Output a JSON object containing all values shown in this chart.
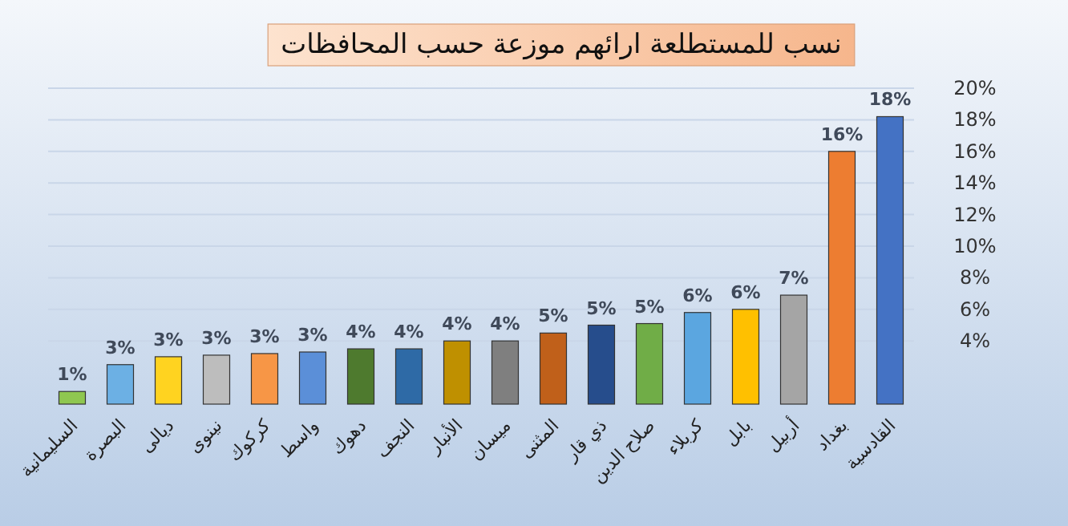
{
  "chart_data": {
    "type": "bar",
    "title": "نسب للمستطلعة ارائهم موزعة حسب المحافظات",
    "categories": [
      "السليمانية",
      "البصرة",
      "ديالى",
      "نينوى",
      "كركوك",
      "واسط",
      "دهوك",
      "النجف",
      "الأنبار",
      "ميسان",
      "المثنى",
      "ذي قار",
      "صلاح الدين",
      "كربلاء",
      "بابل",
      "أربيل",
      "بغداد",
      "القادسية"
    ],
    "values": [
      0.8,
      2.5,
      3.0,
      3.1,
      3.2,
      3.3,
      3.5,
      3.5,
      4.0,
      4.0,
      4.5,
      5.0,
      5.1,
      5.8,
      6.0,
      6.9,
      16.0,
      18.2
    ],
    "value_labels": [
      "1%",
      "3%",
      "3%",
      "3%",
      "3%",
      "3%",
      "4%",
      "4%",
      "4%",
      "4%",
      "5%",
      "5%",
      "5%",
      "6%",
      "6%",
      "7%",
      "16%",
      "18%"
    ],
    "colors": [
      "#8fc750",
      "#6cb0e4",
      "#ffd320",
      "#bdbdbd",
      "#f79646",
      "#5b8fd8",
      "#4e7a2e",
      "#2e6aa6",
      "#bf9000",
      "#7f7f7f",
      "#c0601a",
      "#264d8c",
      "#70ad47",
      "#5ba6e0",
      "#ffc000",
      "#a5a5a5",
      "#ed7d31",
      "#4472c4"
    ],
    "ylim": [
      0,
      20
    ],
    "yticks": [
      {
        "value": 4,
        "label": "4%"
      },
      {
        "value": 6,
        "label": "6%"
      },
      {
        "value": 8,
        "label": "8%"
      },
      {
        "value": 10,
        "label": "10%"
      },
      {
        "value": 12,
        "label": "12%"
      },
      {
        "value": 14,
        "label": "14%"
      },
      {
        "value": 16,
        "label": "16%"
      },
      {
        "value": 18,
        "label": "18%"
      },
      {
        "value": 20,
        "label": "20%"
      }
    ],
    "grid": "y"
  }
}
